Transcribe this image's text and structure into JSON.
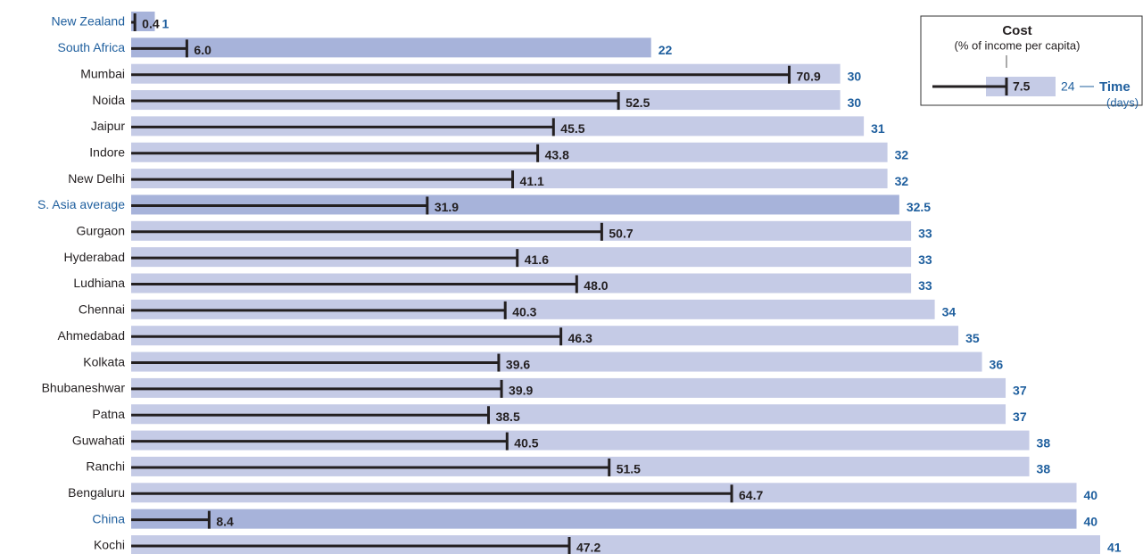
{
  "chart_data": {
    "type": "bar",
    "categories": [
      "New Zealand",
      "South Africa",
      "Mumbai",
      "Noida",
      "Jaipur",
      "Indore",
      "New Delhi",
      "S. Asia average",
      "Gurgaon",
      "Hyderabad",
      "Ludhiana",
      "Chennai",
      "Ahmedabad",
      "Kolkata",
      "Bhubaneshwar",
      "Patna",
      "Guwahati",
      "Ranchi",
      "Bengaluru",
      "China",
      "Kochi"
    ],
    "series": [
      {
        "name": "Time",
        "color": "#c5cbe6",
        "highlight_color": "#a7b3da",
        "label_color": "#1f5f9e",
        "values": [
          1,
          22,
          30,
          30,
          31,
          32,
          32,
          32.5,
          33,
          33,
          33,
          34,
          35,
          36,
          37,
          37,
          38,
          38,
          40,
          40,
          41
        ]
      },
      {
        "name": "Cost",
        "color": "#231f20",
        "axis": "x2",
        "values": [
          0.4,
          6.0,
          70.9,
          52.5,
          45.5,
          43.8,
          41.1,
          31.9,
          50.7,
          41.6,
          48.0,
          40.3,
          46.3,
          39.6,
          39.9,
          38.5,
          40.5,
          51.5,
          64.7,
          8.4,
          47.2
        ],
        "value_labels": [
          "0.4",
          "6.0",
          "70.9",
          "52.5",
          "45.5",
          "43.8",
          "41.1",
          "31.9",
          "50.7",
          "41.6",
          "48.0",
          "40.3",
          "46.3",
          "39.6",
          "39.9",
          "38.5",
          "40.5",
          "51.5",
          "64.7",
          "8.4",
          "47.2"
        ]
      }
    ],
    "highlight": [
      0,
      1,
      7,
      19
    ],
    "xlim": [
      0,
      41
    ],
    "x2lim": [
      0,
      104.4
    ],
    "legend": {
      "cost_title": "Cost",
      "cost_unit": "(% of income per capita)",
      "cost_example": "7.5",
      "time_example": "24",
      "time_title": "Time",
      "time_unit": "(days)"
    }
  }
}
